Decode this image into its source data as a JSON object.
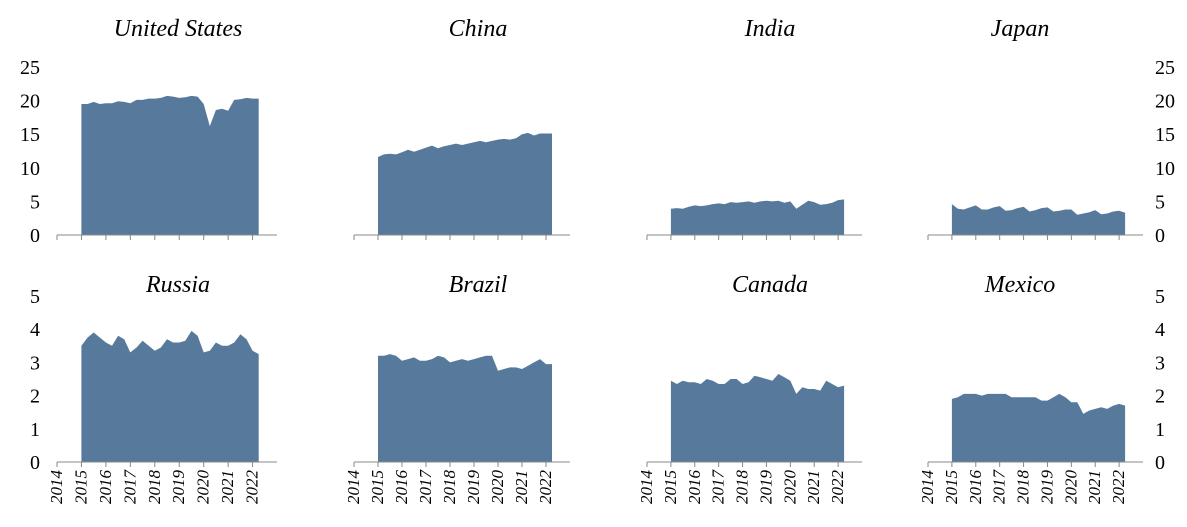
{
  "chart_data": [
    {
      "type": "area",
      "title": "United States",
      "ylim": [
        0,
        25
      ],
      "yticks": [
        "0",
        "5",
        "10",
        "15",
        "20",
        "25"
      ],
      "ytick_side": "left",
      "xticks": [
        "2014",
        "2015",
        "2016",
        "2017",
        "2018",
        "2019",
        "2020",
        "2021",
        "2022"
      ],
      "show_xtick_labels": false,
      "color": "#577a9c",
      "x_start": 2015.0,
      "x_step": 0.25,
      "values": [
        19.5,
        19.5,
        19.8,
        19.5,
        19.6,
        19.6,
        19.9,
        19.8,
        19.6,
        20.1,
        20.1,
        20.3,
        20.3,
        20.4,
        20.7,
        20.6,
        20.4,
        20.5,
        20.7,
        20.6,
        19.5,
        16.2,
        18.6,
        18.8,
        18.5,
        20.1,
        20.2,
        20.4,
        20.3,
        20.3
      ]
    },
    {
      "type": "area",
      "title": "China",
      "ylim": [
        0,
        25
      ],
      "yticks": [],
      "ytick_side": "none",
      "xticks": [
        "2014",
        "2015",
        "2016",
        "2017",
        "2018",
        "2019",
        "2020",
        "2021",
        "2022"
      ],
      "show_xtick_labels": false,
      "color": "#577a9c",
      "x_start": 2015.0,
      "x_step": 0.25,
      "values": [
        11.6,
        12.0,
        12.1,
        12.0,
        12.3,
        12.7,
        12.4,
        12.7,
        13.0,
        13.3,
        12.9,
        13.2,
        13.4,
        13.6,
        13.4,
        13.6,
        13.8,
        14.0,
        13.8,
        14.0,
        14.2,
        14.3,
        14.2,
        14.4,
        15.0,
        15.2,
        14.8,
        15.1,
        15.1,
        15.1
      ]
    },
    {
      "type": "area",
      "title": "India",
      "ylim": [
        0,
        25
      ],
      "yticks": [],
      "ytick_side": "none",
      "xticks": [
        "2014",
        "2015",
        "2016",
        "2017",
        "2018",
        "2019",
        "2020",
        "2021",
        "2022"
      ],
      "show_xtick_labels": false,
      "color": "#577a9c",
      "x_start": 2015.0,
      "x_step": 0.25,
      "values": [
        3.9,
        4.0,
        3.9,
        4.2,
        4.4,
        4.3,
        4.4,
        4.6,
        4.7,
        4.6,
        4.9,
        4.8,
        4.9,
        5.0,
        4.8,
        5.0,
        5.1,
        5.0,
        5.1,
        4.8,
        5.0,
        3.9,
        4.5,
        5.1,
        4.9,
        4.5,
        4.6,
        4.8,
        5.2,
        5.3
      ]
    },
    {
      "type": "area",
      "title": "Japan",
      "ylim": [
        0,
        25
      ],
      "yticks": [
        "0",
        "5",
        "10",
        "15",
        "20",
        "25"
      ],
      "ytick_side": "right",
      "xticks": [
        "2014",
        "2015",
        "2016",
        "2017",
        "2018",
        "2019",
        "2020",
        "2021",
        "2022"
      ],
      "show_xtick_labels": false,
      "color": "#577a9c",
      "x_start": 2015.0,
      "x_step": 0.25,
      "values": [
        4.6,
        3.9,
        3.8,
        4.1,
        4.4,
        3.8,
        3.8,
        4.1,
        4.3,
        3.6,
        3.7,
        4.0,
        4.2,
        3.5,
        3.7,
        4.0,
        4.1,
        3.5,
        3.6,
        3.8,
        3.8,
        3.0,
        3.2,
        3.4,
        3.7,
        3.1,
        3.2,
        3.5,
        3.6,
        3.3
      ]
    },
    {
      "type": "area",
      "title": "Russia",
      "ylim": [
        0,
        5
      ],
      "yticks": [
        "0",
        "1",
        "2",
        "3",
        "4",
        "5"
      ],
      "ytick_side": "left",
      "xticks": [
        "2014",
        "2015",
        "2016",
        "2017",
        "2018",
        "2019",
        "2020",
        "2021",
        "2022"
      ],
      "show_xtick_labels": true,
      "color": "#577a9c",
      "x_start": 2015.0,
      "x_step": 0.25,
      "values": [
        3.5,
        3.75,
        3.9,
        3.75,
        3.6,
        3.5,
        3.8,
        3.7,
        3.3,
        3.45,
        3.65,
        3.5,
        3.35,
        3.45,
        3.7,
        3.6,
        3.6,
        3.65,
        3.95,
        3.8,
        3.3,
        3.35,
        3.6,
        3.5,
        3.5,
        3.6,
        3.85,
        3.7,
        3.35,
        3.25
      ]
    },
    {
      "type": "area",
      "title": "Brazil",
      "ylim": [
        0,
        5
      ],
      "yticks": [],
      "ytick_side": "none",
      "xticks": [
        "2014",
        "2015",
        "2016",
        "2017",
        "2018",
        "2019",
        "2020",
        "2021",
        "2022"
      ],
      "show_xtick_labels": true,
      "color": "#577a9c",
      "x_start": 2015.0,
      "x_step": 0.25,
      "values": [
        3.2,
        3.2,
        3.25,
        3.2,
        3.05,
        3.1,
        3.15,
        3.05,
        3.05,
        3.1,
        3.2,
        3.15,
        3.0,
        3.05,
        3.1,
        3.05,
        3.1,
        3.15,
        3.2,
        3.2,
        2.75,
        2.8,
        2.85,
        2.85,
        2.8,
        2.9,
        3.0,
        3.1,
        2.95,
        2.95
      ]
    },
    {
      "type": "area",
      "title": "Canada",
      "ylim": [
        0,
        5
      ],
      "yticks": [],
      "ytick_side": "none",
      "xticks": [
        "2014",
        "2015",
        "2016",
        "2017",
        "2018",
        "2019",
        "2020",
        "2021",
        "2022"
      ],
      "show_xtick_labels": true,
      "color": "#577a9c",
      "x_start": 2015.0,
      "x_step": 0.25,
      "values": [
        2.45,
        2.35,
        2.45,
        2.4,
        2.4,
        2.35,
        2.5,
        2.45,
        2.35,
        2.35,
        2.5,
        2.5,
        2.35,
        2.4,
        2.6,
        2.55,
        2.5,
        2.45,
        2.65,
        2.55,
        2.45,
        2.05,
        2.25,
        2.2,
        2.2,
        2.15,
        2.45,
        2.35,
        2.25,
        2.3
      ]
    },
    {
      "type": "area",
      "title": "Mexico",
      "ylim": [
        0,
        5
      ],
      "yticks": [
        "0",
        "1",
        "2",
        "3",
        "4",
        "5"
      ],
      "ytick_side": "right",
      "xticks": [
        "2014",
        "2015",
        "2016",
        "2017",
        "2018",
        "2019",
        "2020",
        "2021",
        "2022"
      ],
      "show_xtick_labels": true,
      "color": "#577a9c",
      "x_start": 2015.0,
      "x_step": 0.25,
      "values": [
        1.9,
        1.95,
        2.05,
        2.05,
        2.05,
        2.0,
        2.05,
        2.05,
        2.05,
        2.05,
        1.95,
        1.95,
        1.95,
        1.95,
        1.95,
        1.85,
        1.85,
        1.95,
        2.05,
        1.95,
        1.8,
        1.8,
        1.45,
        1.55,
        1.6,
        1.65,
        1.6,
        1.7,
        1.75,
        1.7
      ]
    }
  ]
}
